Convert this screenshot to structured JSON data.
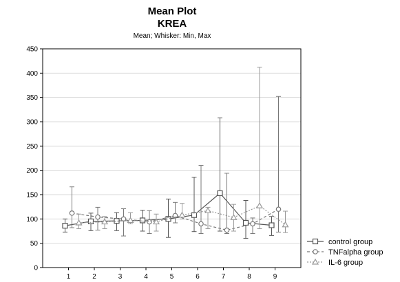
{
  "chart_data": {
    "type": "line",
    "title": "Mean Plot",
    "subtitle": "KREA",
    "caption": "Mean; Whisker: Min, Max",
    "xlabel": "",
    "ylabel": "",
    "ylim": [
      0,
      450
    ],
    "yticks": [
      "0",
      "50",
      "100",
      "150",
      "200",
      "250",
      "300",
      "350",
      "400",
      "450"
    ],
    "categories": [
      "1",
      "2",
      "3",
      "4",
      "5",
      "6",
      "7",
      "8",
      "9"
    ],
    "grid": true,
    "legend_position": "bottom-right",
    "series": [
      {
        "name": "control group",
        "style": "solid",
        "marker": "square",
        "color": "#555555",
        "mean": [
          86,
          95,
          96,
          97,
          100,
          108,
          153,
          92,
          87
        ],
        "min": [
          73,
          76,
          76,
          75,
          62,
          74,
          75,
          60,
          66
        ],
        "max": [
          100,
          112,
          113,
          118,
          141,
          186,
          308,
          138,
          105
        ]
      },
      {
        "name": "TNFalpha group",
        "style": "dashed",
        "marker": "circle",
        "color": "#777777",
        "mean": [
          112,
          104,
          100,
          94,
          107,
          90,
          77,
          90,
          120
        ],
        "min": [
          82,
          77,
          65,
          70,
          92,
          70,
          70,
          70,
          73
        ],
        "max": [
          166,
          124,
          121,
          117,
          134,
          210,
          194,
          102,
          352
        ]
      },
      {
        "name": "IL-6 group",
        "style": "dotted",
        "marker": "triangle",
        "color": "#999999",
        "mean": [
          92,
          94,
          97,
          94,
          108,
          117,
          103,
          127,
          88
        ],
        "min": [
          80,
          80,
          90,
          75,
          100,
          80,
          75,
          80,
          72
        ],
        "max": [
          110,
          105,
          113,
          110,
          132,
          124,
          130,
          412,
          116
        ]
      }
    ]
  }
}
